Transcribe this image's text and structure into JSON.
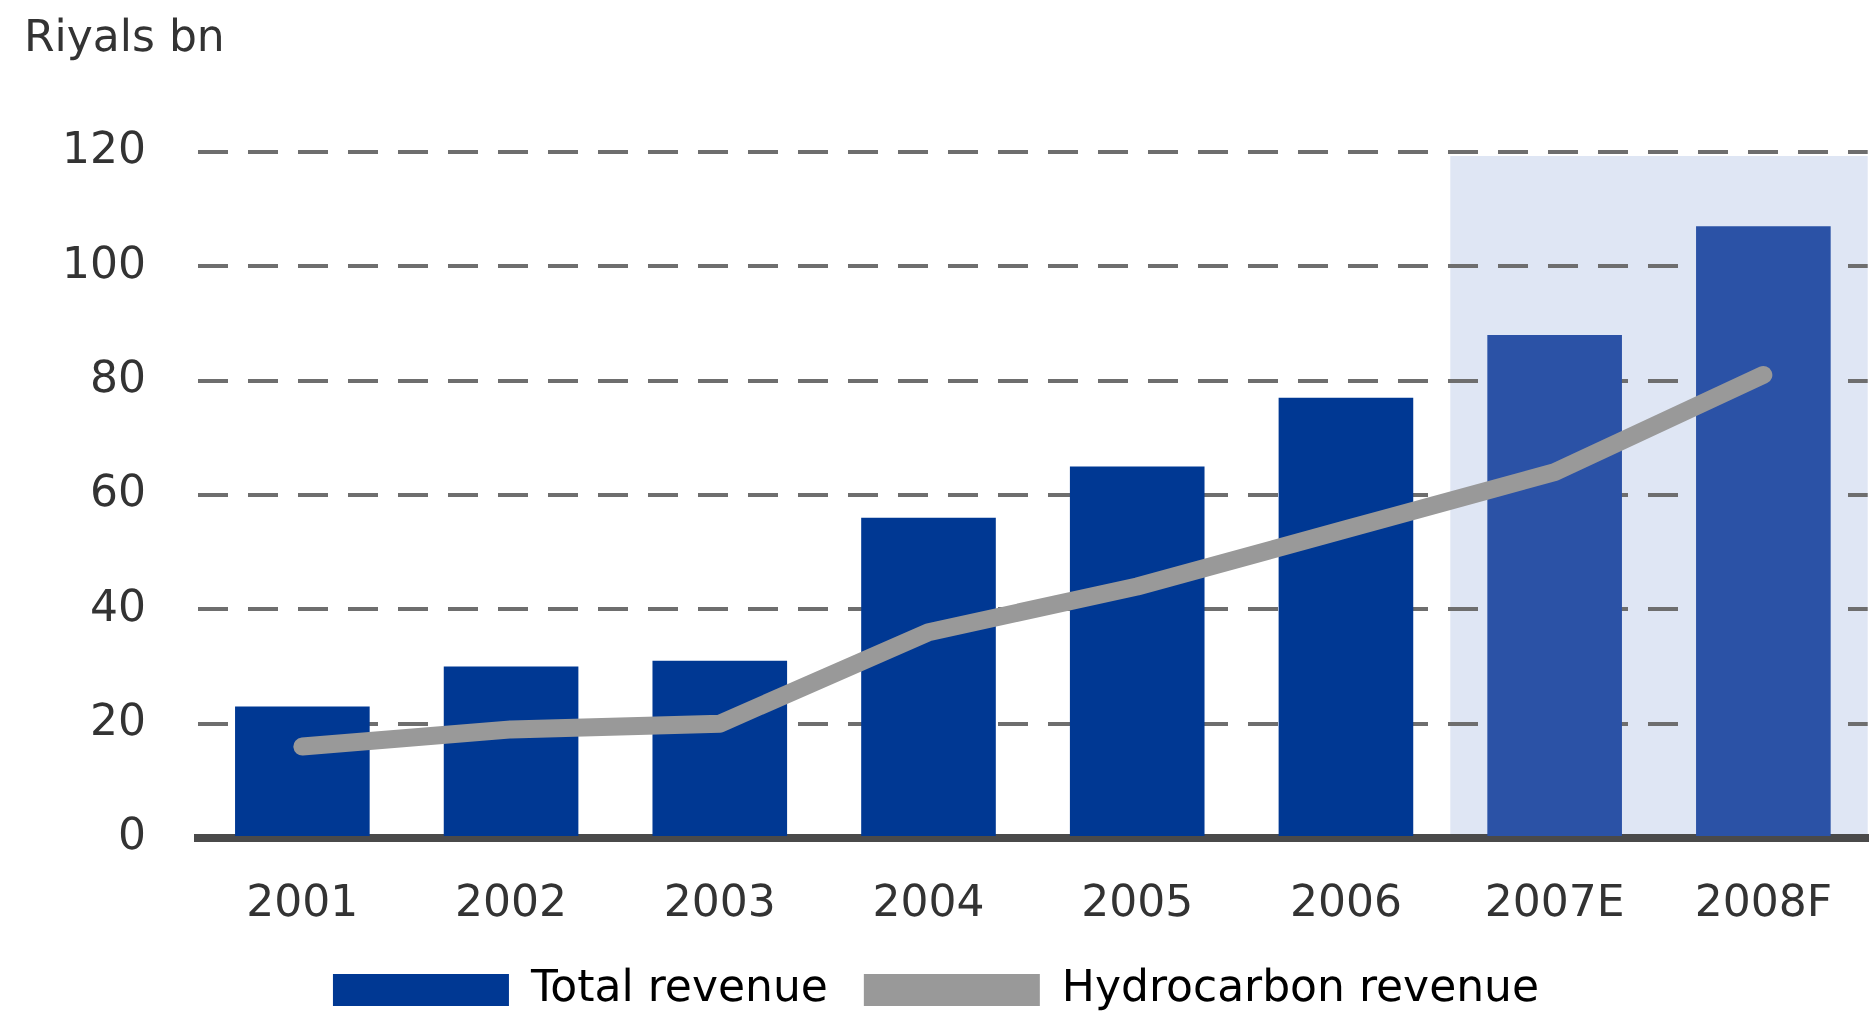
{
  "chart_data": {
    "type": "bar",
    "ylabel": "Riyals bn",
    "categories": [
      "2001",
      "2002",
      "2003",
      "2004",
      "2005",
      "2006",
      "2007E",
      "2008F"
    ],
    "series": [
      {
        "name": "Total revenue",
        "color": "#003893",
        "colors": [
          "#003893",
          "#003893",
          "#003893",
          "#003893",
          "#003893",
          "#003893",
          "#2b52a6",
          "#2b52a6"
        ],
        "values": [
          23,
          30,
          31,
          56,
          65,
          77,
          88,
          107
        ]
      },
      {
        "name": "Hydrocarbon revenue",
        "type": "line",
        "color": "#999999",
        "values": [
          16,
          19,
          20,
          36,
          44,
          54,
          64,
          81
        ]
      }
    ],
    "ylim": [
      0,
      120
    ],
    "yticks": [
      0,
      20,
      40,
      60,
      80,
      100,
      120
    ],
    "bands": [
      {
        "axis": "x",
        "from": "2007E",
        "to": "2008F",
        "color": "#dfe6f4"
      }
    ],
    "grid": "y",
    "legend": "bottom"
  }
}
